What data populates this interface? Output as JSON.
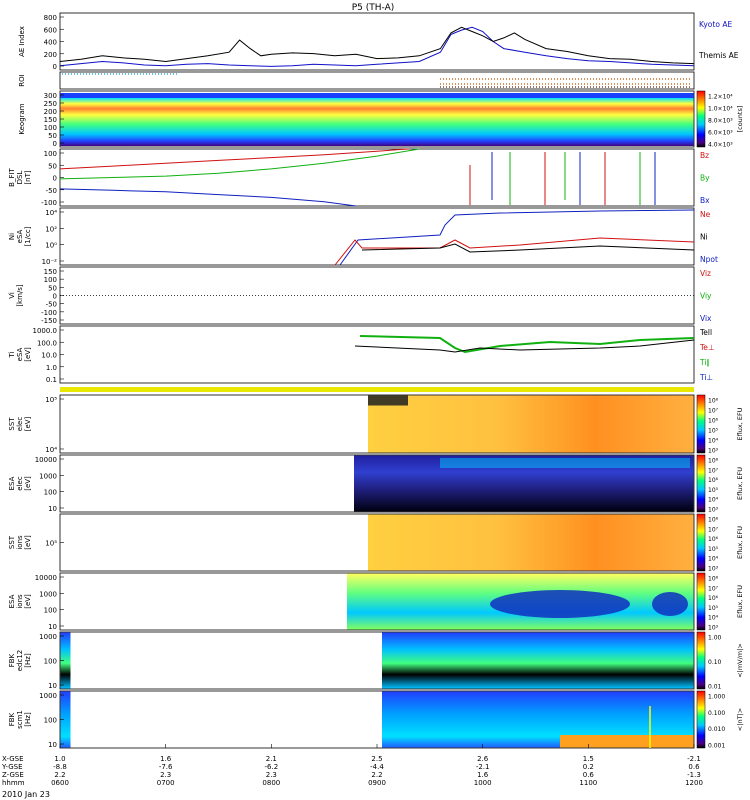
{
  "title": "P5 (TH-A)",
  "date_label": "2010 Jan 23",
  "colors": {
    "kyoto": "#1010c8",
    "themis": "#000000",
    "red": "#d01010",
    "green": "#10b010",
    "blue": "#1020c0",
    "roi_cyan": "#00a0c0",
    "roi_orange": "#c05000",
    "roi_yellow": "#e8e800"
  },
  "chart_data": [
    {
      "id": "ae",
      "type": "line",
      "ylabel": "AE Index",
      "yticks": [
        "800",
        "600",
        "400",
        "200",
        "0"
      ],
      "ylim": [
        0,
        800
      ],
      "xlim": [
        600,
        1200
      ],
      "series": [
        {
          "name": "Kyoto AE",
          "color": "#1010c8",
          "x": [
            600,
            620,
            640,
            660,
            680,
            700,
            720,
            740,
            760,
            780,
            800,
            820,
            840,
            860,
            880,
            900,
            920,
            940,
            960,
            970,
            980,
            990,
            1000,
            1010,
            1020,
            1040,
            1060,
            1080,
            1100,
            1120,
            1140,
            1160,
            1180,
            1200
          ],
          "y": [
            60,
            90,
            120,
            100,
            70,
            60,
            80,
            90,
            70,
            60,
            50,
            60,
            80,
            70,
            60,
            80,
            100,
            120,
            250,
            500,
            560,
            600,
            540,
            400,
            300,
            250,
            200,
            160,
            130,
            120,
            100,
            80,
            70,
            60
          ]
        },
        {
          "name": "Themis AE",
          "color": "#000000",
          "x": [
            600,
            620,
            640,
            660,
            680,
            700,
            720,
            740,
            760,
            770,
            780,
            790,
            800,
            820,
            840,
            860,
            880,
            900,
            920,
            940,
            960,
            970,
            980,
            990,
            1000,
            1010,
            1020,
            1030,
            1040,
            1060,
            1080,
            1100,
            1120,
            1140,
            1160,
            1180,
            1200
          ],
          "y": [
            120,
            150,
            200,
            170,
            150,
            120,
            160,
            200,
            250,
            420,
            300,
            200,
            220,
            240,
            230,
            200,
            220,
            160,
            170,
            200,
            300,
            520,
            600,
            540,
            480,
            400,
            450,
            520,
            430,
            300,
            260,
            200,
            160,
            150,
            120,
            100,
            90
          ]
        }
      ]
    },
    {
      "id": "roi",
      "type": "table",
      "ylabel": "ROI"
    },
    {
      "id": "keogram",
      "type": "heatmap",
      "ylabel": "Keogram",
      "yticks": [
        "300",
        "250",
        "200",
        "150",
        "100",
        "50",
        "0"
      ],
      "colorbar_ticks": [
        "1.2×10⁴",
        "1.0×10⁴",
        "8.0×10³",
        "6.0×10³",
        "4.0×10³"
      ],
      "colorbar_label": "[counts]"
    },
    {
      "id": "bfit",
      "type": "line",
      "ylabel": "B_FIT",
      "ylabel2": "DSL",
      "yunit": "[nT]",
      "yticks": [
        "100",
        "50",
        "0",
        "-50",
        "-100"
      ],
      "ylim": [
        -100,
        100
      ],
      "legend": [
        "Bz",
        "By",
        "Bx"
      ],
      "series": [
        {
          "name": "Bz",
          "color": "#d01010",
          "x": [
            600,
            650,
            700,
            750,
            800,
            850,
            900,
            920,
            930
          ],
          "y": [
            30,
            40,
            50,
            60,
            70,
            80,
            92,
            98,
            100
          ]
        },
        {
          "name": "By",
          "color": "#10b010",
          "x": [
            600,
            650,
            700,
            750,
            800,
            850,
            900,
            940
          ],
          "y": [
            -5,
            0,
            5,
            15,
            30,
            50,
            75,
            100
          ]
        },
        {
          "name": "Bx",
          "color": "#1020c0",
          "x": [
            600,
            650,
            700,
            750,
            800,
            850,
            880
          ],
          "y": [
            -40,
            -45,
            -50,
            -60,
            -70,
            -85,
            -100
          ]
        }
      ]
    },
    {
      "id": "ni",
      "type": "line",
      "ylabel": "Ni",
      "ylabel2": "eSA",
      "yunit": "[1/cc]",
      "yticks": [
        "10⁴",
        "10²",
        "10⁰",
        "10⁻²"
      ],
      "legend": [
        "Ne",
        "Ni",
        "Npot"
      ]
    },
    {
      "id": "vi",
      "type": "line",
      "ylabel": "Vi",
      "yunit": "[km/s]",
      "yticks": [
        "150",
        "100",
        "50",
        "0",
        "-50",
        "-100",
        "-150"
      ],
      "ylim": [
        -150,
        150
      ],
      "legend": [
        "Viz",
        "Viy",
        "Vix"
      ]
    },
    {
      "id": "ti",
      "type": "line",
      "ylabel": "Ti",
      "ylabel2": "eSA",
      "yunit": "[eV]",
      "yticks": [
        "1000.0",
        "100.0",
        "10.0",
        "1.0",
        "0.1"
      ],
      "legend": [
        "Tell",
        "Te⊥",
        "Ti∥",
        "Ti⊥"
      ]
    },
    {
      "id": "sst_e",
      "type": "heatmap",
      "ylabel": "SST",
      "ylabel2": "elec",
      "yunit": "[eV]",
      "yticks": [
        "10⁵",
        "10⁴"
      ],
      "colorbar_ticks": [
        "10⁸",
        "10⁷",
        "10⁶",
        "10⁵",
        "10⁴",
        "10³"
      ],
      "colorbar_label": "Eflux, EFU"
    },
    {
      "id": "esa_e",
      "type": "heatmap",
      "ylabel": "ESA",
      "ylabel2": "elec",
      "yunit": "[eV]",
      "yticks": [
        "10000",
        "1000",
        "100",
        "10"
      ],
      "colorbar_ticks": [
        "10⁸",
        "10⁷",
        "10⁶",
        "10⁵",
        "10⁴",
        "10³"
      ],
      "colorbar_label": "Eflux, EFU"
    },
    {
      "id": "sst_i",
      "type": "heatmap",
      "ylabel": "SST",
      "ylabel2": "ions",
      "yunit": "[eV]",
      "yticks": [
        "10⁵"
      ],
      "colorbar_ticks": [
        "10⁸",
        "10⁷",
        "10⁶",
        "10⁵",
        "10⁴",
        "10³"
      ],
      "colorbar_label": "Eflux, EFU"
    },
    {
      "id": "esa_i",
      "type": "heatmap",
      "ylabel": "ESA",
      "ylabel2": "ions",
      "yunit": "[eV]",
      "yticks": [
        "10000",
        "1000",
        "100",
        "10"
      ],
      "colorbar_ticks": [
        "10⁸",
        "10⁷",
        "10⁶",
        "10⁵",
        "10⁴",
        "10³"
      ],
      "colorbar_label": "Eflux, EFU"
    },
    {
      "id": "fbk1",
      "type": "heatmap",
      "ylabel": "FBK",
      "ylabel2": "edc12",
      "yunit": "[Hz]",
      "yticks": [
        "1000",
        "100",
        "10"
      ],
      "colorbar_ticks": [
        "1.00",
        "0.10",
        "0.01"
      ],
      "colorbar_label": "<|mV/m|>"
    },
    {
      "id": "fbk2",
      "type": "heatmap",
      "ylabel": "FBK",
      "ylabel2": "scm1",
      "yunit": "[Hz]",
      "yticks": [
        "1000",
        "100",
        "10"
      ],
      "colorbar_ticks": [
        "1.000",
        "0.100",
        "0.010",
        "0.001"
      ],
      "colorbar_label": "<|nT|>"
    }
  ],
  "x_axis": {
    "row_labels": [
      "X-GSE",
      "Y-GSE",
      "Z-GSE",
      "hhmm"
    ],
    "columns": [
      {
        "x": "1.0",
        "y": "-8.8",
        "z": "2.2",
        "t": "0600"
      },
      {
        "x": "1.6",
        "y": "-7.6",
        "z": "2.3",
        "t": "0700"
      },
      {
        "x": "2.1",
        "y": "-6.2",
        "z": "2.3",
        "t": "0800"
      },
      {
        "x": "2.5",
        "y": "-4.4",
        "z": "2.2",
        "t": "0900"
      },
      {
        "x": "2.6",
        "y": "-2.1",
        "z": "1.6",
        "t": "1000"
      },
      {
        "x": "1.5",
        "y": "0.2",
        "z": "0.6",
        "t": "1100"
      },
      {
        "x": "-2.1",
        "y": "0.6",
        "z": "-1.3",
        "t": "1200"
      }
    ]
  }
}
